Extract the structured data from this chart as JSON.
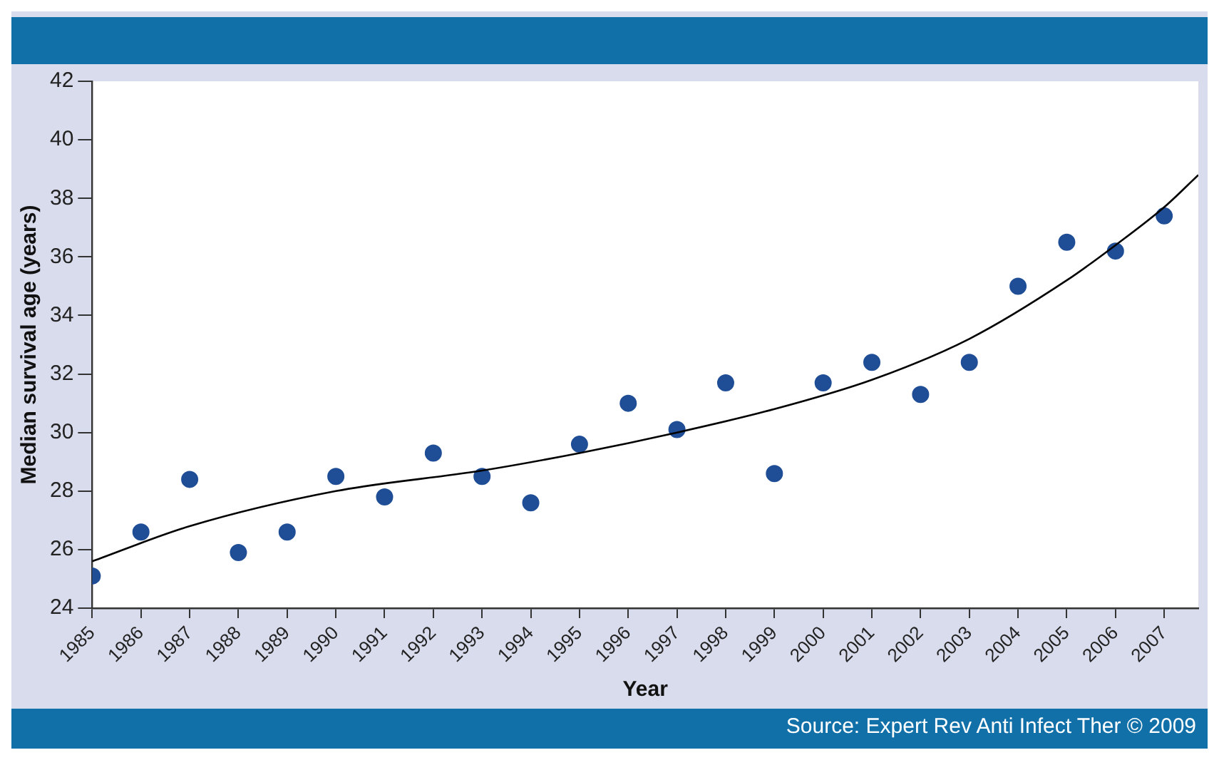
{
  "chart_data": {
    "type": "scatter",
    "xlabel": "Year",
    "ylabel": "Median survival age (years)",
    "annotations": [
      "Source: Expert Rev Anti Infect Ther © 2009"
    ],
    "xlim": [
      1985,
      2007.7
    ],
    "xticks": [
      1985,
      1986,
      1987,
      1988,
      1989,
      1990,
      1991,
      1992,
      1993,
      1994,
      1995,
      1996,
      1997,
      1998,
      1999,
      2000,
      2001,
      2002,
      2003,
      2004,
      2005,
      2006,
      2007
    ],
    "ylim": [
      24,
      42
    ],
    "yticks": [
      24,
      26,
      28,
      30,
      32,
      34,
      36,
      38,
      40,
      42
    ],
    "grid": false,
    "legend": false,
    "series": [
      {
        "type": "scatter",
        "color": "#1f4e96",
        "marker": "circle",
        "x": [
          1985,
          1986,
          1987,
          1988,
          1989,
          1990,
          1991,
          1992,
          1993,
          1994,
          1995,
          1996,
          1997,
          1998,
          1999,
          2000,
          2001,
          2002,
          2003,
          2004,
          2005,
          2006,
          2007
        ],
        "values": [
          25.1,
          26.6,
          28.4,
          25.9,
          26.6,
          28.5,
          27.8,
          29.3,
          28.5,
          27.6,
          29.6,
          31.0,
          30.1,
          31.7,
          28.6,
          31.7,
          32.4,
          31.3,
          32.4,
          35.0,
          36.5,
          36.2,
          37.4
        ]
      },
      {
        "type": "line",
        "color": "#000000",
        "marker": "none",
        "line_style": "solid",
        "x": [
          1985,
          1987,
          1990,
          1993,
          1995,
          1997,
          1999,
          2001,
          2003,
          2005,
          2006,
          2007,
          2007.7
        ],
        "values": [
          25.6,
          26.8,
          28.0,
          28.7,
          29.3,
          30.0,
          30.8,
          31.8,
          33.2,
          35.2,
          36.4,
          37.7,
          38.8
        ]
      }
    ]
  }
}
